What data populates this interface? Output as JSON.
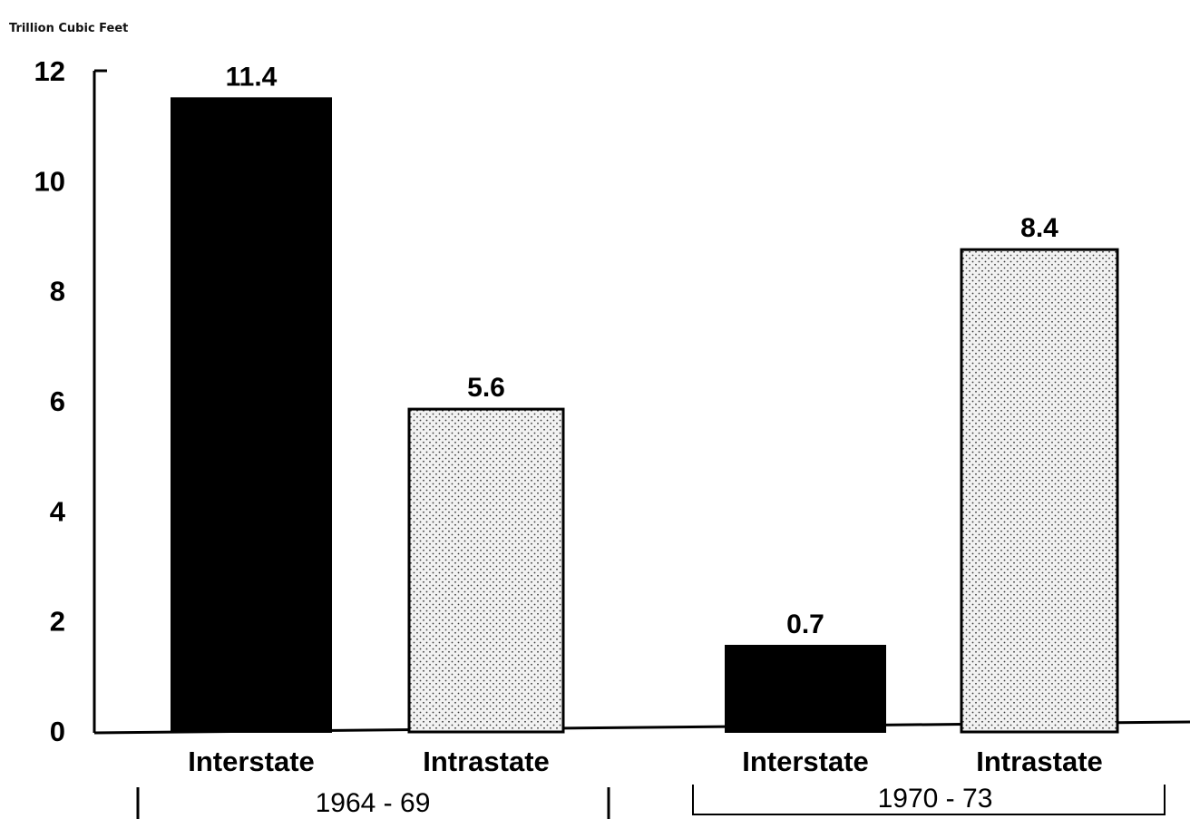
{
  "chart_data": {
    "type": "bar",
    "units_label": "Trillion Cubic Feet",
    "title": "",
    "xlabel": "",
    "ylabel": "",
    "ylim": [
      0,
      12
    ],
    "yticks": [
      0,
      2,
      4,
      6,
      8,
      10,
      12
    ],
    "grid": false,
    "groups": [
      {
        "label": "1964 - 69",
        "bars": [
          {
            "category": "Interstate",
            "value": 11.4,
            "value_label": "11.4",
            "style": "solid"
          },
          {
            "category": "Intrastate",
            "value": 5.6,
            "value_label": "5.6",
            "style": "stippled"
          }
        ]
      },
      {
        "label": "1970 - 73",
        "bars": [
          {
            "category": "Interstate",
            "value": 0.7,
            "value_label": "0.7",
            "style": "solid"
          },
          {
            "category": "Intrastate",
            "value": 8.4,
            "value_label": "8.4",
            "style": "stippled"
          }
        ]
      }
    ],
    "colors": {
      "solid": "#000000",
      "stipple_bg": "#f2f2f2",
      "stipple_dot": "#3a3a3a"
    }
  }
}
